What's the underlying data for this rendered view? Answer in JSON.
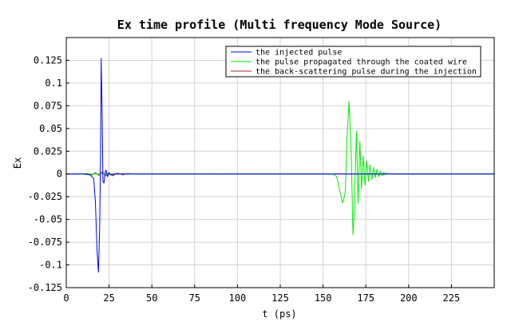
{
  "chart_data": {
    "type": "line",
    "title": "Ex time profile (Multi frequency Mode Source)",
    "xlabel": "t (ps)",
    "ylabel": "Ex",
    "xlim": [
      0,
      250
    ],
    "ylim": [
      -0.125,
      0.15
    ],
    "x_ticks": [
      0,
      25,
      50,
      75,
      100,
      125,
      150,
      175,
      200,
      225
    ],
    "x_tick_labels": [
      "0",
      "25",
      "50",
      "75",
      "100",
      "125",
      "150",
      "175",
      "200",
      "225"
    ],
    "y_ticks": [
      -0.125,
      -0.1,
      -0.075,
      -0.05,
      -0.025,
      0,
      0.025,
      0.05,
      0.075,
      0.1,
      0.125
    ],
    "y_tick_labels": [
      "-0.125",
      "-0.1",
      "-0.075",
      "-0.05",
      "-0.025",
      "0",
      "0.025",
      "0.05",
      "0.075",
      "0.1",
      "0.125"
    ],
    "grid": true,
    "legend_position": "top-right",
    "series": [
      {
        "name": "the injected pulse",
        "color": "#0000ff",
        "x": [
          0,
          10,
          14,
          16,
          17,
          18,
          18.8,
          19.5,
          20,
          20.4,
          21,
          21.4,
          22,
          22.5,
          23,
          23.5,
          24,
          25,
          26,
          28,
          32,
          36,
          40,
          250
        ],
        "y": [
          0,
          0,
          -0.001,
          -0.005,
          -0.03,
          -0.085,
          -0.108,
          -0.06,
          0.02,
          0.127,
          0.06,
          -0.008,
          -0.01,
          -0.002,
          0.004,
          0.003,
          -0.003,
          0.001,
          -0.001,
          0,
          0,
          0,
          0,
          0
        ]
      },
      {
        "name": "the pulse propagated through the coated wire",
        "color": "#00ee00",
        "x": [
          0,
          150,
          156,
          158,
          160,
          161.5,
          163,
          164,
          165.2,
          166.5,
          167.5,
          168.2,
          169.5,
          170.5,
          171.5,
          172.5,
          173.5,
          174.5,
          175.5,
          176.5,
          177.5,
          178.5,
          179.5,
          180.5,
          181.5,
          182.5,
          183.5,
          184.5,
          185.5,
          186.5,
          187.5,
          188.5,
          190,
          192,
          196,
          200,
          250
        ],
        "y": [
          0,
          0,
          0,
          -0.003,
          -0.02,
          -0.032,
          -0.02,
          0.04,
          0.08,
          0.02,
          -0.067,
          -0.04,
          0.047,
          -0.032,
          0.036,
          -0.016,
          0.02,
          -0.012,
          0.014,
          -0.008,
          0.01,
          -0.006,
          0.007,
          -0.004,
          0.005,
          -0.003,
          0.003,
          -0.002,
          0.002,
          -0.001,
          0.001,
          0,
          0,
          0,
          0,
          0,
          0
        ]
      },
      {
        "name": "the back-scattering pulse during the injection",
        "color": "#a52a2a",
        "x": [
          0,
          8,
          12,
          15,
          17,
          19,
          21,
          23,
          25,
          27,
          30,
          33,
          36,
          40,
          250
        ],
        "y": [
          0,
          0,
          0.0005,
          -0.001,
          0.0015,
          -0.0015,
          0.0025,
          -0.002,
          0.0015,
          -0.002,
          0.001,
          -0.001,
          0.0005,
          0,
          0
        ]
      }
    ]
  }
}
